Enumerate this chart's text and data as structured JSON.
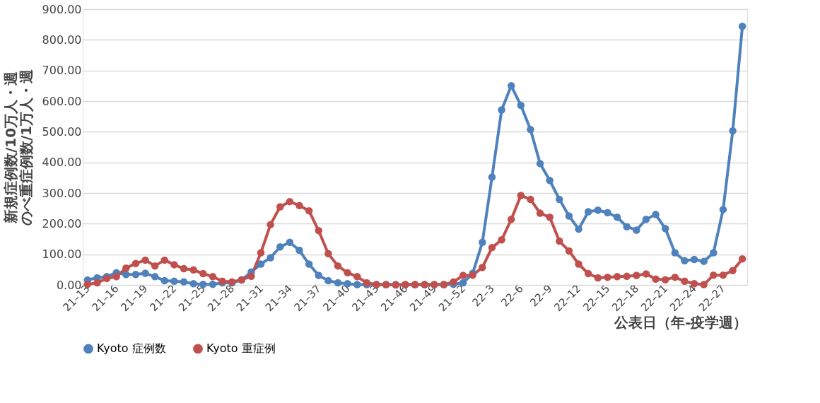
{
  "chart_data": {
    "type": "line",
    "xlabel": "公表日（年-疫学週）",
    "ylabel": "新規症例数/10万人・週のべ重症例数/1万人・週",
    "categories": [
      "21–13",
      null,
      null,
      "21–16",
      null,
      null,
      "21–19",
      null,
      null,
      "21–22",
      null,
      null,
      "21–25",
      null,
      null,
      "21–28",
      null,
      null,
      "21–31",
      null,
      null,
      "21–34",
      null,
      null,
      "21–37",
      null,
      null,
      "21–40",
      null,
      null,
      "21–43",
      null,
      null,
      "21–46",
      null,
      null,
      "21–49",
      null,
      null,
      "21–52",
      null,
      null,
      "22–3",
      null,
      null,
      "22–6",
      null,
      null,
      "22–9",
      null,
      null,
      "22–12",
      null,
      null,
      "22–15",
      null,
      null,
      "22–18",
      null,
      null,
      "22–21",
      null,
      null,
      "22–24",
      null,
      null,
      "22–27",
      null,
      null
    ],
    "series": [
      {
        "name": "Kyoto  症例数",
        "color": "#4f81bd",
        "values": [
          16,
          23,
          27,
          40,
          34,
          34,
          38,
          27,
          14,
          12,
          10,
          4,
          2,
          2,
          7,
          7,
          16,
          42,
          68,
          89,
          124,
          139,
          113,
          68,
          31,
          14,
          7,
          4,
          1,
          1,
          1,
          1,
          1,
          1,
          1,
          1,
          1,
          1,
          2,
          7,
          38,
          139,
          352,
          571,
          650,
          586,
          507,
          396,
          341,
          279,
          225,
          182,
          239,
          244,
          236,
          221,
          190,
          179,
          214,
          230,
          184,
          105,
          79,
          83,
          77,
          105,
          246,
          503,
          844
        ]
      },
      {
        "name": "Kyoto  重症例",
        "color": "#c0504d",
        "values": [
          2,
          7,
          21,
          27,
          55,
          70,
          81,
          62,
          81,
          66,
          53,
          49,
          37,
          27,
          12,
          10,
          17,
          28,
          105,
          197,
          255,
          272,
          259,
          242,
          177,
          102,
          62,
          40,
          27,
          7,
          1,
          1,
          0,
          1,
          1,
          1,
          1,
          1,
          10,
          31,
          32,
          57,
          122,
          147,
          214,
          292,
          279,
          234,
          221,
          143,
          111,
          68,
          37,
          23,
          25,
          27,
          28,
          31,
          36,
          19,
          17,
          25,
          12,
          4,
          1,
          32,
          32,
          47,
          85
        ]
      }
    ],
    "ylim": [
      0,
      900
    ],
    "yticks": [
      {
        "value": 0,
        "label": "0.00"
      },
      {
        "value": 100,
        "label": "100.00"
      },
      {
        "value": 200,
        "label": "200.00"
      },
      {
        "value": 300,
        "label": "300.00"
      },
      {
        "value": 400,
        "label": "400.00"
      },
      {
        "value": 500,
        "label": "500.00"
      },
      {
        "value": 600,
        "label": "600.00"
      },
      {
        "value": 700,
        "label": "700.00"
      },
      {
        "value": 800,
        "label": "800.00"
      },
      {
        "value": 900,
        "label": "900.00"
      }
    ],
    "grid": "y",
    "legend": "bottom",
    "marker": "circle",
    "line_style": "solid"
  }
}
